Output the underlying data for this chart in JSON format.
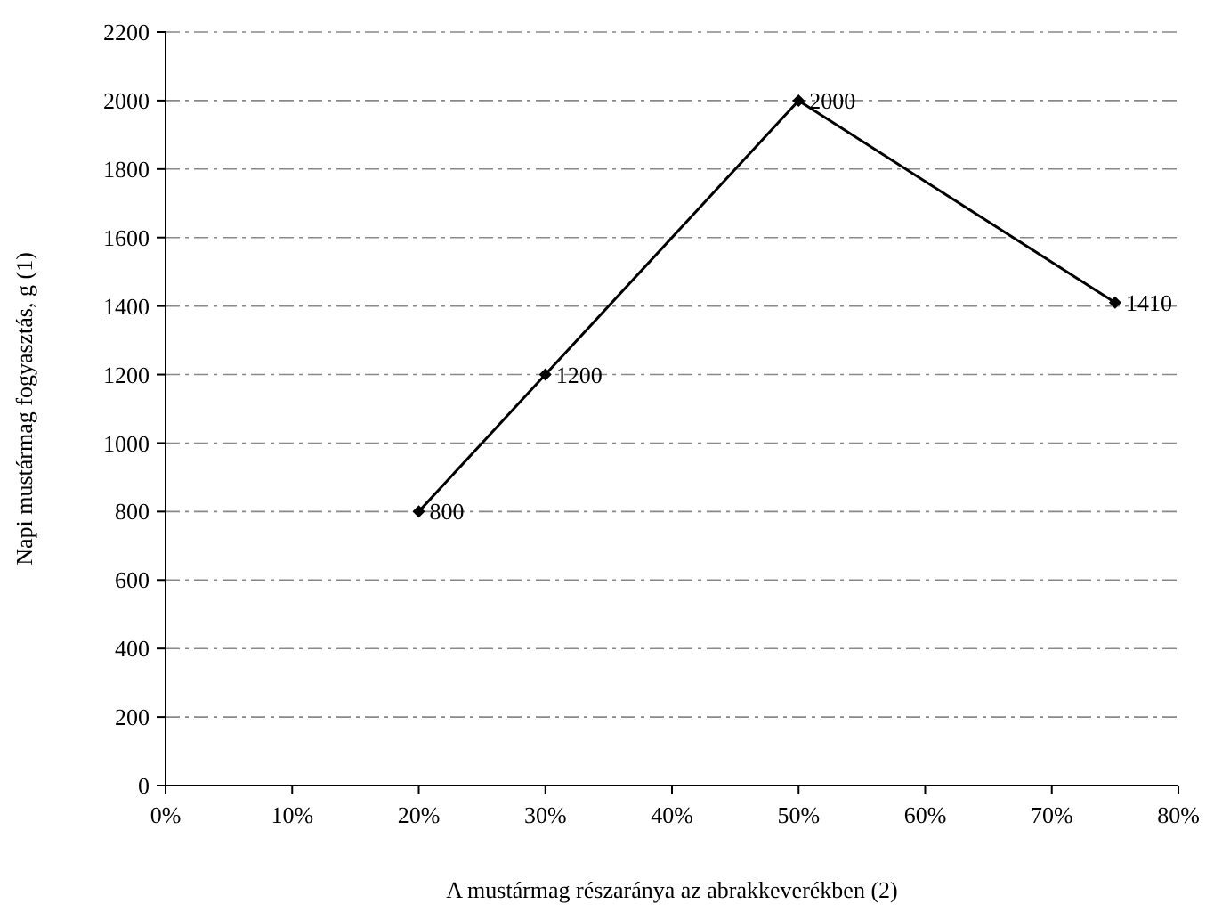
{
  "chart_data": {
    "type": "line",
    "xlabel": "A mustármag részaránya az abrakkeverékben (2)",
    "ylabel": "Napi mustármag fogyasztás, g (1)",
    "x": [
      20,
      30,
      50,
      75
    ],
    "series": [
      {
        "color": "#000000",
        "values": [
          800,
          1200,
          2000,
          1410
        ]
      }
    ],
    "xlim": [
      0,
      80
    ],
    "xticks": [
      {
        "value": 0,
        "label": "0%"
      },
      {
        "value": 10,
        "label": "10%"
      },
      {
        "value": 20,
        "label": "20%"
      },
      {
        "value": 30,
        "label": "30%"
      },
      {
        "value": 40,
        "label": "40%"
      },
      {
        "value": 50,
        "label": "50%"
      },
      {
        "value": 60,
        "label": "60%"
      },
      {
        "value": 70,
        "label": "70%"
      },
      {
        "value": 80,
        "label": "80%"
      }
    ],
    "ylim": [
      0,
      2200
    ],
    "yticks": [
      0,
      200,
      400,
      600,
      800,
      1000,
      1200,
      1400,
      1600,
      1800,
      2000,
      2200
    ],
    "grid": "y",
    "data_labels": true,
    "marker": "diamond",
    "line_style": "solid"
  }
}
